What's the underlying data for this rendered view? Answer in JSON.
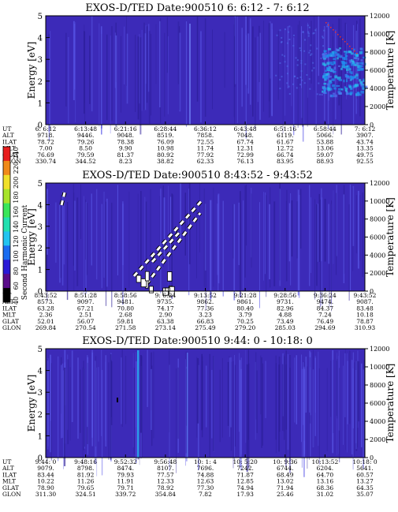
{
  "colorbar": {
    "label": "Second Harmonic Current",
    "ticks": [
      "40",
      "60",
      "80",
      "100",
      "120",
      "140",
      "160",
      "180",
      "200",
      "220",
      "240"
    ],
    "colors": [
      "#000000",
      "#5a0c8a",
      "#2a1ad6",
      "#1a6cf0",
      "#22c4f0",
      "#22e0b0",
      "#39e65a",
      "#a8e42a",
      "#f0e02a",
      "#f08a1a",
      "#e81e1e"
    ]
  },
  "row_labels": [
    "UT",
    "ALT",
    "ILAT",
    "MLT",
    "GLAT",
    "GLON"
  ],
  "chart_data": [
    {
      "type": "heatmap",
      "title": "EXOS-D/TED   Date:900510  6: 6:12 - 7: 6:12",
      "ylabel": "Energy [eV]",
      "y2label": "Temperature [K]",
      "ylim": [
        0,
        5
      ],
      "y2lim": [
        0,
        12000
      ],
      "yticks": [
        "0",
        "1",
        "2",
        "3",
        "4",
        "5"
      ],
      "y2ticks": [
        "0",
        "2000",
        "4000",
        "6000",
        "8000",
        "10000",
        "12000"
      ],
      "table": [
        [
          "6: 6:12",
          "6:13:48",
          "6:21:16",
          "6:28:44",
          "6:36:12",
          "6:43:48",
          "6:51:16",
          "6:58:44",
          "7: 6:12"
        ],
        [
          "9718.",
          "9446.",
          "9048.",
          "8519.",
          "7858.",
          "7048.",
          "6119.",
          "5066.",
          "3907."
        ],
        [
          "78.72",
          "79.26",
          "78.38",
          "76.09",
          "72.55",
          "67.74",
          "61.67",
          "53.88",
          "43.74"
        ],
        [
          "7.00",
          "8.50",
          "9.90",
          "10.98",
          "11.74",
          "12.31",
          "12.72",
          "13.06",
          "13.35"
        ],
        [
          "76.69",
          "79.59",
          "81.37",
          "80.92",
          "77.92",
          "72.99",
          "66.74",
          "59.07",
          "49.75"
        ],
        [
          "330.74",
          "344.52",
          "8.23",
          "38.82",
          "62.33",
          "76.13",
          "83.95",
          "88.93",
          "92.55"
        ]
      ]
    },
    {
      "type": "heatmap",
      "title": "EXOS-D/TED   Date:900510  8:43:52 - 9:43:52",
      "ylabel": "Energy [eV]",
      "y2label": "Temperature [K]",
      "ylim": [
        0,
        5
      ],
      "y2lim": [
        0,
        12000
      ],
      "yticks": [
        "0",
        "1",
        "2",
        "3",
        "4",
        "5"
      ],
      "y2ticks": [
        "0",
        "2000",
        "4000",
        "6000",
        "8000",
        "10000",
        "12000"
      ],
      "table": [
        [
          "8:43:52",
          "8:51:28",
          "8:58:56",
          "9: 6:24",
          "9:13:52",
          "9:21:28",
          "9:28:56",
          "9:36:24",
          "9:43:52"
        ],
        [
          "8573.",
          "9097.",
          "9481.",
          "9735.",
          "9862.",
          "9861.",
          "9731.",
          "9474.",
          "9087."
        ],
        [
          "63.28",
          "67.21",
          "70.80",
          "74.17",
          "77.36",
          "80.40",
          "82.96",
          "84.37",
          "83.48"
        ],
        [
          "2.36",
          "2.51",
          "2.68",
          "2.90",
          "3.23",
          "3.79",
          "4.88",
          "7.24",
          "10.18"
        ],
        [
          "52.01",
          "56.07",
          "59.81",
          "63.38",
          "66.83",
          "70.25",
          "73.49",
          "76.49",
          "78.87"
        ],
        [
          "269.84",
          "270.54",
          "271.58",
          "273.14",
          "275.49",
          "279.20",
          "285.03",
          "294.69",
          "310.93"
        ]
      ]
    },
    {
      "type": "heatmap",
      "title": "EXOS-D/TED   Date:900510  9:44: 0 - 10:18: 0",
      "ylabel": "Energy [eV]",
      "y2label": "Temperature [K]",
      "ylim": [
        0,
        5
      ],
      "y2lim": [
        0,
        12000
      ],
      "yticks": [
        "0",
        "1",
        "2",
        "3",
        "4",
        "5"
      ],
      "y2ticks": [
        "0",
        "2000",
        "4000",
        "6000",
        "8000",
        "10000",
        "12000"
      ],
      "table": [
        [
          "9:44: 0",
          "9:48:16",
          "9:52:32",
          "9:56:48",
          "10: 1: 4",
          "10: 5:20",
          "10: 9:36",
          "10:13:52",
          "10:18: 0"
        ],
        [
          "9079.",
          "8798.",
          "8474.",
          "8107.",
          "7696.",
          "7242.",
          "6744.",
          "6204.",
          "5641."
        ],
        [
          "83.44",
          "81.92",
          "79.93",
          "77.57",
          "74.88",
          "71.87",
          "68.49",
          "64.70",
          "60.57"
        ],
        [
          "10.22",
          "11.26",
          "11.91",
          "12.33",
          "12.63",
          "12.85",
          "13.02",
          "13.16",
          "13.27"
        ],
        [
          "78.90",
          "79.65",
          "79.71",
          "78.92",
          "77.30",
          "74.94",
          "71.94",
          "68.36",
          "64.35"
        ],
        [
          "311.30",
          "324.51",
          "339.72",
          "354.84",
          "7.82",
          "17.93",
          "25.46",
          "31.02",
          "35.07"
        ]
      ]
    }
  ]
}
